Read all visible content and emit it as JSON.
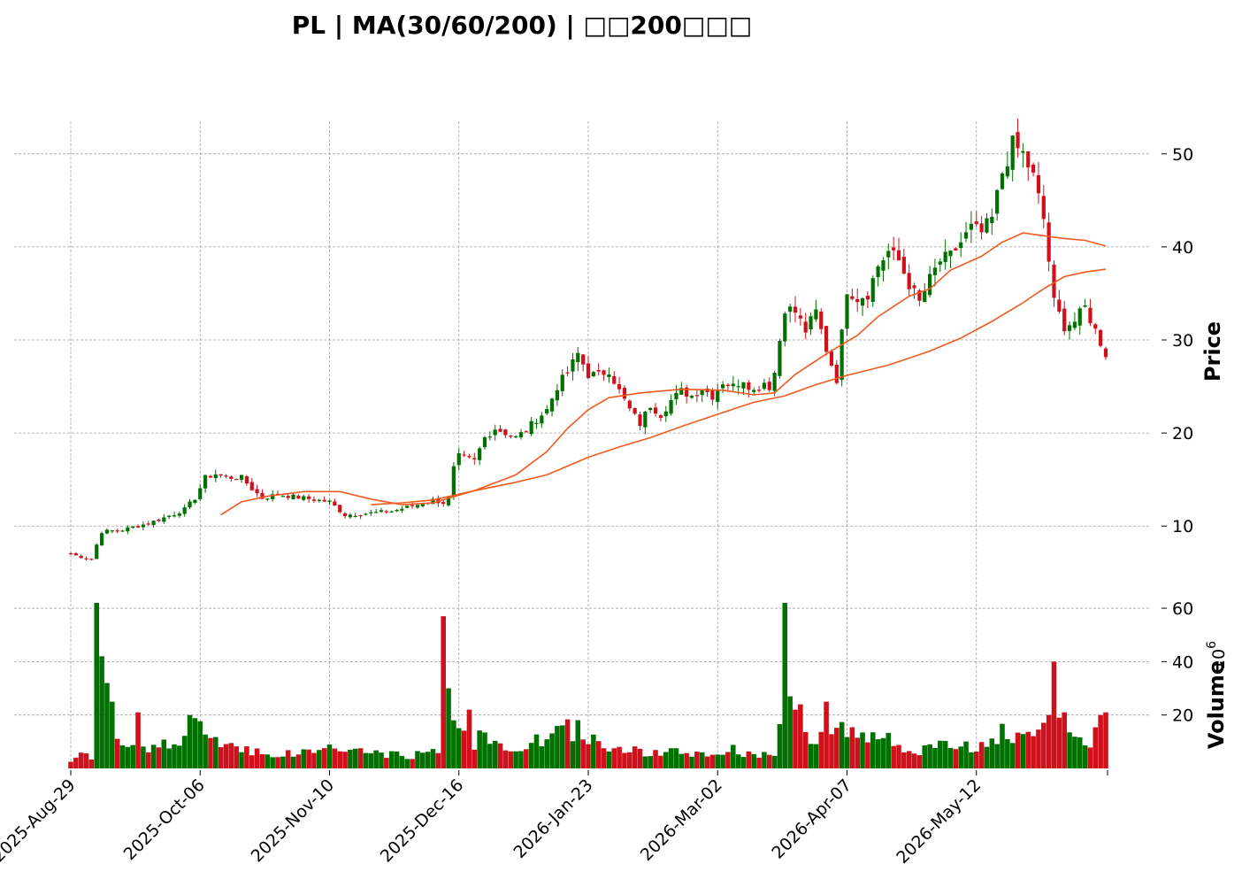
{
  "chart_data": {
    "type": "candlestick",
    "title": "PL  |  MA(30/60/200)  |  □□200□□□",
    "ylabel": "Price",
    "volume_label": "Volume",
    "volume_exponent": "10",
    "volume_exponent_power": "6",
    "ylim": [
      4.6,
      53.5
    ],
    "yticks": [
      10,
      20,
      30,
      40,
      50
    ],
    "vol_ylim": [
      0,
      64
    ],
    "vol_yticks": [
      20,
      40,
      60
    ],
    "xticks": [
      {
        "index": 0,
        "label": "2025-Aug-29"
      },
      {
        "index": 25,
        "label": "2025-Oct-06"
      },
      {
        "index": 50,
        "label": "2025-Nov-10"
      },
      {
        "index": 75,
        "label": "2025-Dec-16"
      },
      {
        "index": 100,
        "label": "2026-Jan-23"
      },
      {
        "index": 125,
        "label": "2026-Mar-02"
      },
      {
        "index": 150,
        "label": "2026-Apr-07"
      },
      {
        "index": 175,
        "label": "2026-May-12"
      }
    ],
    "bar_count": 201,
    "grid": true,
    "colors": {
      "up": "#007000",
      "down": "#d0101a",
      "ma": "#f05a1e",
      "grid": "#a0a0a0"
    },
    "anchors": [
      [
        0,
        7.0,
        3.5
      ],
      [
        3,
        6.5,
        6.0
      ],
      [
        4,
        6.4,
        3.5
      ],
      [
        5,
        8.0,
        27.0
      ],
      [
        6,
        9.4,
        22.0
      ],
      [
        10,
        9.6,
        12.0
      ],
      [
        15,
        10.3,
        8.0
      ],
      [
        20,
        11.3,
        10.0
      ],
      [
        22,
        11.8,
        12.0
      ],
      [
        24,
        13.0,
        15.0
      ],
      [
        26,
        15.2,
        14.0
      ],
      [
        28,
        15.6,
        11.0
      ],
      [
        30,
        15.2,
        9.0
      ],
      [
        33,
        15.2,
        8.0
      ],
      [
        35,
        14.0,
        7.0
      ],
      [
        37,
        13.0,
        6.0
      ],
      [
        40,
        13.4,
        5.0
      ],
      [
        45,
        13.0,
        6.0
      ],
      [
        50,
        12.6,
        8.0
      ],
      [
        53,
        11.2,
        7.0
      ],
      [
        58,
        11.4,
        6.0
      ],
      [
        62,
        11.6,
        5.0
      ],
      [
        67,
        12.3,
        5.0
      ],
      [
        70,
        12.8,
        7.0
      ],
      [
        72,
        12.5,
        6.0
      ],
      [
        73,
        13.0,
        8.0
      ],
      [
        74,
        16.2,
        25.0
      ],
      [
        75,
        17.5,
        18.0
      ],
      [
        76,
        17.3,
        12.0
      ],
      [
        78,
        17.0,
        10.0
      ],
      [
        80,
        19.5,
        12.0
      ],
      [
        82,
        20.5,
        9.0
      ],
      [
        84,
        20.0,
        7.0
      ],
      [
        86,
        19.5,
        8.0
      ],
      [
        88,
        20.3,
        9.0
      ],
      [
        90,
        21.5,
        10.0
      ],
      [
        92,
        22.5,
        11.0
      ],
      [
        94,
        25.0,
        13.0
      ],
      [
        96,
        26.5,
        15.0
      ],
      [
        98,
        28.5,
        14.0
      ],
      [
        100,
        26.3,
        11.0
      ],
      [
        102,
        26.2,
        10.0
      ],
      [
        104,
        26.8,
        9.0
      ],
      [
        106,
        24.5,
        8.0
      ],
      [
        108,
        22.5,
        7.0
      ],
      [
        110,
        21.0,
        6.0
      ],
      [
        112,
        23.0,
        6.0
      ],
      [
        114,
        22.0,
        5.0
      ],
      [
        116,
        23.5,
        6.0
      ],
      [
        118,
        24.5,
        6.0
      ],
      [
        120,
        24.0,
        5.0
      ],
      [
        122,
        24.8,
        6.0
      ],
      [
        124,
        24.0,
        5.0
      ],
      [
        126,
        25.5,
        6.0
      ],
      [
        128,
        25.0,
        7.0
      ],
      [
        130,
        25.8,
        6.0
      ],
      [
        132,
        24.5,
        5.0
      ],
      [
        134,
        25.5,
        6.0
      ],
      [
        135,
        25.0,
        6.0
      ],
      [
        136,
        26.5,
        6.0
      ],
      [
        138,
        33.5,
        20.0
      ],
      [
        140,
        33.0,
        15.0
      ],
      [
        142,
        31.0,
        12.0
      ],
      [
        144,
        33.0,
        10.0
      ],
      [
        146,
        29.0,
        12.0
      ],
      [
        148,
        25.8,
        14.0
      ],
      [
        150,
        35.5,
        15.0
      ],
      [
        152,
        34.5,
        12.0
      ],
      [
        154,
        35.0,
        10.0
      ],
      [
        156,
        38.0,
        12.0
      ],
      [
        158,
        39.5,
        11.0
      ],
      [
        160,
        38.5,
        9.0
      ],
      [
        162,
        36.0,
        8.0
      ],
      [
        164,
        34.0,
        7.0
      ],
      [
        166,
        36.5,
        7.0
      ],
      [
        168,
        38.5,
        8.0
      ],
      [
        170,
        39.0,
        9.0
      ],
      [
        172,
        40.5,
        9.0
      ],
      [
        174,
        42.0,
        8.0
      ],
      [
        176,
        41.5,
        8.0
      ],
      [
        178,
        43.0,
        9.0
      ],
      [
        180,
        48.0,
        14.0
      ],
      [
        182,
        51.0,
        11.0
      ],
      [
        184,
        50.0,
        10.0
      ],
      [
        186,
        47.5,
        12.0
      ],
      [
        188,
        43.0,
        15.0
      ],
      [
        190,
        34.0,
        35.0
      ],
      [
        192,
        31.5,
        15.0
      ],
      [
        194,
        32.0,
        12.0
      ],
      [
        196,
        33.5,
        10.0
      ],
      [
        198,
        31.0,
        12.0
      ],
      [
        200,
        28.5,
        16.0
      ]
    ],
    "volume_spikes": [
      [
        5,
        62
      ],
      [
        6,
        42
      ],
      [
        7,
        32
      ],
      [
        8,
        25
      ],
      [
        13,
        21
      ],
      [
        23,
        20
      ],
      [
        72,
        57
      ],
      [
        73,
        30
      ],
      [
        74,
        18
      ],
      [
        77,
        22
      ],
      [
        138,
        62
      ],
      [
        139,
        27
      ],
      [
        140,
        22
      ],
      [
        141,
        24
      ],
      [
        146,
        25
      ],
      [
        189,
        20
      ],
      [
        190,
        40
      ],
      [
        191,
        19
      ],
      [
        192,
        21
      ],
      [
        199,
        20
      ],
      [
        200,
        21
      ]
    ],
    "series": [
      {
        "period": 30,
        "values": [
          [
            29,
            11.2
          ],
          [
            33,
            12.6
          ],
          [
            38,
            13.2
          ],
          [
            45,
            13.7
          ],
          [
            52,
            13.7
          ],
          [
            58,
            12.9
          ],
          [
            64,
            12.3
          ],
          [
            70,
            12.5
          ],
          [
            78,
            13.8
          ],
          [
            86,
            15.5
          ],
          [
            92,
            18.0
          ],
          [
            96,
            20.5
          ],
          [
            100,
            22.5
          ],
          [
            104,
            23.8
          ],
          [
            110,
            24.3
          ],
          [
            118,
            24.7
          ],
          [
            126,
            24.6
          ],
          [
            132,
            24.1
          ],
          [
            136,
            24.3
          ],
          [
            140,
            26.3
          ],
          [
            146,
            28.5
          ],
          [
            152,
            30.5
          ],
          [
            156,
            32.5
          ],
          [
            162,
            34.7
          ],
          [
            166,
            35.5
          ],
          [
            170,
            37.5
          ],
          [
            176,
            39.0
          ],
          [
            180,
            40.5
          ],
          [
            184,
            41.5
          ],
          [
            188,
            41.2
          ],
          [
            192,
            40.9
          ],
          [
            196,
            40.7
          ],
          [
            200,
            40.1
          ]
        ]
      },
      {
        "period": 60,
        "values": [
          [
            58,
            12.3
          ],
          [
            64,
            12.5
          ],
          [
            70,
            12.8
          ],
          [
            78,
            13.8
          ],
          [
            86,
            14.7
          ],
          [
            92,
            15.5
          ],
          [
            100,
            17.4
          ],
          [
            106,
            18.5
          ],
          [
            112,
            19.5
          ],
          [
            118,
            20.7
          ],
          [
            126,
            22.2
          ],
          [
            132,
            23.3
          ],
          [
            138,
            24.0
          ],
          [
            144,
            25.2
          ],
          [
            150,
            26.2
          ],
          [
            158,
            27.3
          ],
          [
            166,
            28.8
          ],
          [
            172,
            30.2
          ],
          [
            178,
            32.0
          ],
          [
            184,
            34.0
          ],
          [
            188,
            35.5
          ],
          [
            192,
            36.8
          ],
          [
            196,
            37.3
          ],
          [
            200,
            37.6
          ]
        ]
      }
    ]
  }
}
